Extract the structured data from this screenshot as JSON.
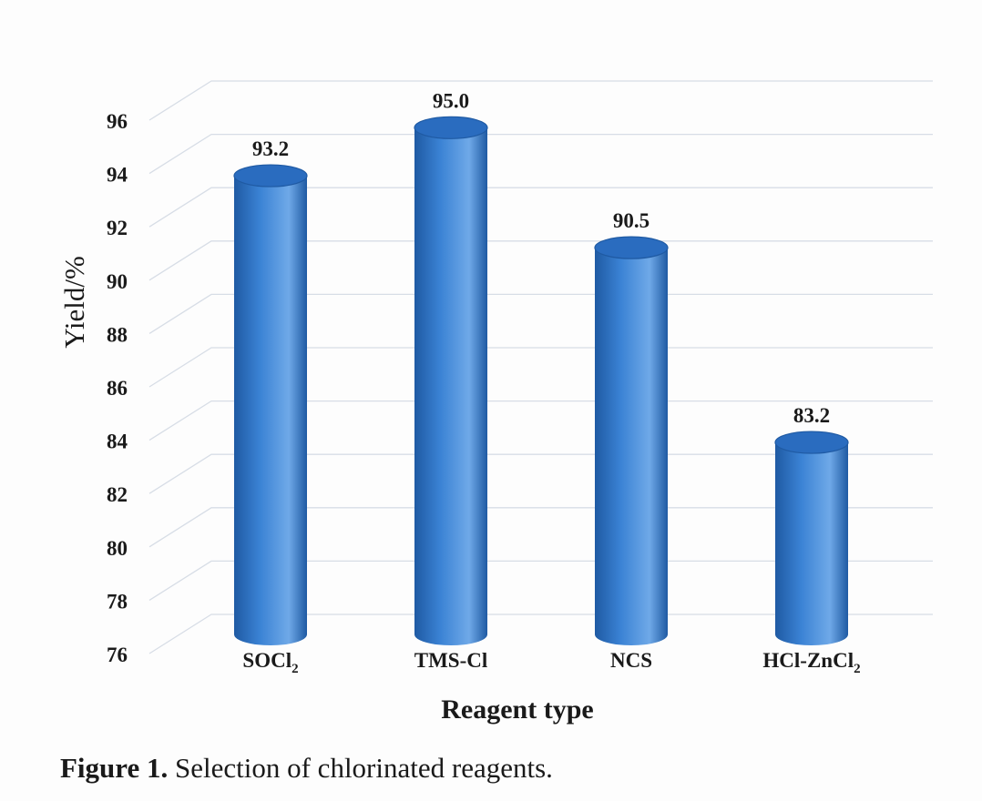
{
  "chart_data": {
    "type": "bar",
    "style": "3d-cylinder",
    "categories": [
      {
        "text": "SOCl",
        "sub": "2"
      },
      {
        "text": "TMS-Cl",
        "sub": ""
      },
      {
        "text": "NCS",
        "sub": ""
      },
      {
        "text": "HCl-ZnCl",
        "sub": "2"
      }
    ],
    "values": [
      93.2,
      95.0,
      90.5,
      83.2
    ],
    "value_labels": [
      "93.2",
      "95.0",
      "90.5",
      "83.2"
    ],
    "ylabel": "Yield/%",
    "xlabel": "Reagent type",
    "ylim": [
      76,
      96
    ],
    "yticks": [
      76,
      78,
      80,
      82,
      84,
      86,
      88,
      90,
      92,
      94,
      96
    ],
    "grid": true,
    "legend": "none",
    "colors": {
      "bar_main": "#3a82d4",
      "bar_dark": "#1f5aa3",
      "bar_light": "#6fa9e8",
      "bar_top": "#2a6cbf",
      "gridline": "#d7dde6",
      "text": "#1a1a1a"
    }
  },
  "caption": {
    "label": "Figure 1.",
    "text": "Selection of chlorinated reagents."
  }
}
